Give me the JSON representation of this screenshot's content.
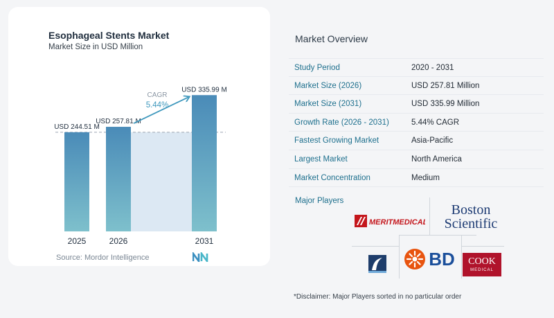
{
  "chart_card": {
    "title": "Esophageal Stents Market",
    "subtitle": "Market Size in USD Million",
    "source": "Source:  Mordor Intelligence"
  },
  "chart_data": {
    "type": "bar",
    "title": "Esophageal Stents Market",
    "subtitle": "Market Size in USD Million",
    "categories": [
      "2025",
      "2026",
      "2031"
    ],
    "values": [
      244.51,
      257.81,
      335.99
    ],
    "data_labels": [
      "USD 244.51 M",
      "USD 257.81 M",
      "USD 335.99 M"
    ],
    "ylim": [
      0,
      345
    ],
    "grid": false,
    "annotation": {
      "label": "CAGR",
      "value": "5.44%"
    },
    "colors": {
      "bar_top": "#4a8bb8",
      "bar_bottom": "#7ec0cc",
      "band": "#dce8f3"
    }
  },
  "overview": {
    "title": "Market Overview",
    "rows": [
      {
        "label": "Study Period",
        "value": "2020 - 2031"
      },
      {
        "label": "Market Size (2026)",
        "value": "USD 257.81 Million"
      },
      {
        "label": "Market Size (2031)",
        "value": "USD 335.99 Million"
      },
      {
        "label": "Growth Rate (2026 - 2031)",
        "value": "5.44% CAGR"
      },
      {
        "label": "Fastest Growing Market",
        "value": "Asia-Pacific"
      },
      {
        "label": "Largest Market",
        "value": "North America"
      },
      {
        "label": "Market Concentration",
        "value": "Medium"
      }
    ]
  },
  "players": {
    "title": "Major Players",
    "logos": [
      {
        "name": "merit-medical-logo",
        "text": "MERITMEDICAL"
      },
      {
        "name": "boston-scientific-logo",
        "text_line1": "Boston",
        "text_line2": "Scientific"
      },
      {
        "name": "fluoro-logo"
      },
      {
        "name": "bd-logo",
        "text": "BD"
      },
      {
        "name": "cook-medical-logo",
        "text_line1": "COOK",
        "text_line2": "MEDICAL"
      }
    ]
  },
  "disclaimer": "*Disclaimer: Major Players sorted in no particular order"
}
